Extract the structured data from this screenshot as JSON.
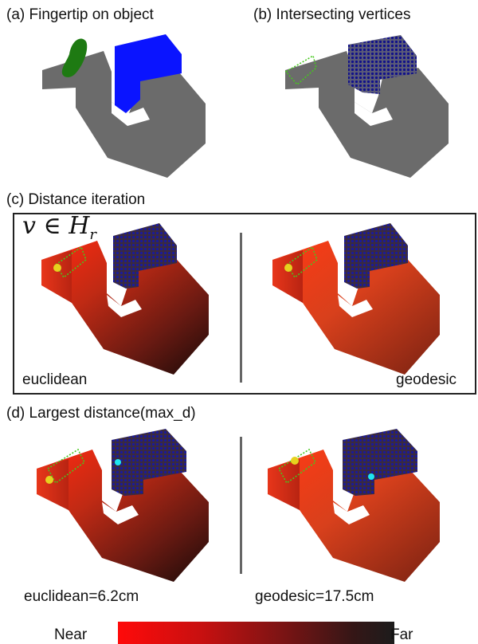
{
  "panels": {
    "a": {
      "title": "(a) Fingertip on object"
    },
    "b": {
      "title": "(b) Intersecting vertices"
    },
    "c": {
      "title": "(c) Distance iteration",
      "math_lhs": "v ∈ H",
      "math_sub": "r",
      "left_label": "euclidean",
      "right_label": "geodesic"
    },
    "d": {
      "title": "(d) Largest distance(max_d)",
      "left_label": "euclidean=6.2cm",
      "right_label": "geodesic=17.5cm"
    }
  },
  "colorbar": {
    "near_label": "Near",
    "far_label": "Far",
    "near_color": "#ff0a0a",
    "far_color": "#1c1c1c"
  },
  "colors": {
    "object_gray": "#6b6b6b",
    "fingertip_green": "#1e7a12",
    "cube_blue": "#0a14ff",
    "vertex_dot_blue": "#1a1a8c",
    "vertex_green": "#46c81e",
    "marker_yellow": "#e6d21e",
    "marker_cyan": "#1ee6f0"
  }
}
